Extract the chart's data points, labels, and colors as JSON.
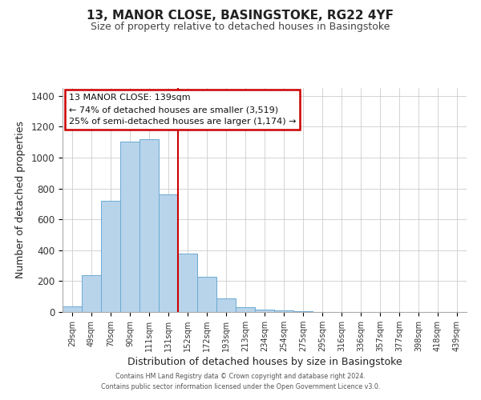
{
  "title": "13, MANOR CLOSE, BASINGSTOKE, RG22 4YF",
  "subtitle": "Size of property relative to detached houses in Basingstoke",
  "xlabel": "Distribution of detached houses by size in Basingstoke",
  "ylabel": "Number of detached properties",
  "bar_labels": [
    "29sqm",
    "49sqm",
    "70sqm",
    "90sqm",
    "111sqm",
    "131sqm",
    "152sqm",
    "172sqm",
    "193sqm",
    "213sqm",
    "234sqm",
    "254sqm",
    "275sqm",
    "295sqm",
    "316sqm",
    "336sqm",
    "357sqm",
    "377sqm",
    "398sqm",
    "418sqm",
    "439sqm"
  ],
  "bar_heights": [
    35,
    240,
    720,
    1105,
    1120,
    760,
    380,
    230,
    90,
    30,
    18,
    10,
    3,
    0,
    0,
    0,
    0,
    0,
    0,
    0,
    0
  ],
  "bar_color": "#b8d4ea",
  "bar_edgecolor": "#6aaad4",
  "vline_x": 6.0,
  "vline_color": "#cc0000",
  "annotation_title": "13 MANOR CLOSE: 139sqm",
  "annotation_line1": "← 74% of detached houses are smaller (3,519)",
  "annotation_line2": "25% of semi-detached houses are larger (1,174) →",
  "annotation_box_color": "#cc0000",
  "ylim": [
    0,
    1450
  ],
  "yticks": [
    0,
    200,
    400,
    600,
    800,
    1000,
    1200,
    1400
  ],
  "footer1": "Contains HM Land Registry data © Crown copyright and database right 2024.",
  "footer2": "Contains public sector information licensed under the Open Government Licence v3.0."
}
